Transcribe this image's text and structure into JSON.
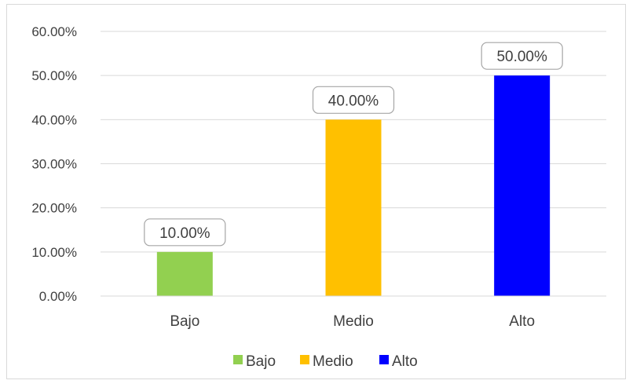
{
  "chart_data": {
    "type": "bar",
    "title": "",
    "xlabel": "",
    "ylabel": "",
    "categories": [
      "Bajo",
      "Medio",
      "Alto"
    ],
    "values": [
      0.1,
      0.4,
      0.5
    ],
    "data_labels": [
      "10.00%",
      "40.00%",
      "50.00%"
    ],
    "colors": [
      "#92d050",
      "#ffc000",
      "#0000ff"
    ],
    "ylim": [
      0,
      0.6
    ],
    "yticks": [
      0,
      0.1,
      0.2,
      0.3,
      0.4,
      0.5,
      0.6
    ],
    "ytick_labels": [
      "0.00%",
      "10.00%",
      "20.00%",
      "30.00%",
      "40.00%",
      "50.00%",
      "60.00%"
    ],
    "grid": true,
    "legend": {
      "position": "bottom",
      "entries": [
        "Bajo",
        "Medio",
        "Alto"
      ]
    }
  }
}
